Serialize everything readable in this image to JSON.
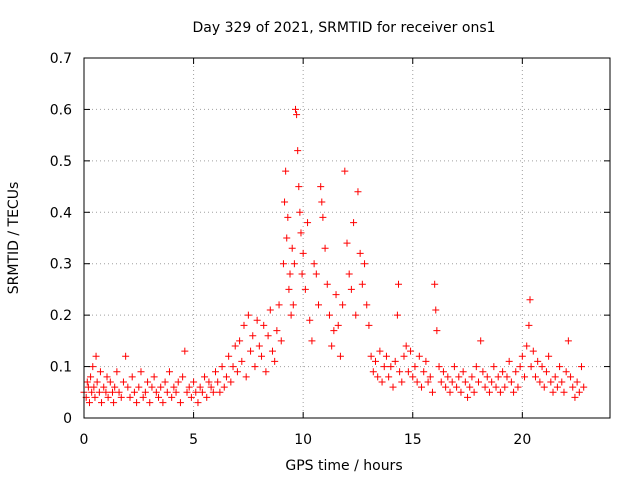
{
  "chart_data": {
    "type": "scatter",
    "title": "Day 329 of 2021, SRMTID for receiver ons1",
    "xlabel": "GPS time / hours",
    "ylabel": "SRMTID / TECUs",
    "xlim": [
      0,
      24
    ],
    "ylim": [
      0,
      0.7
    ],
    "xticks": [
      0,
      5,
      10,
      15,
      20
    ],
    "xtick_labels": [
      "0",
      "5",
      "10",
      "15",
      "20"
    ],
    "yticks": [
      0,
      0.1,
      0.2,
      0.3,
      0.4,
      0.5,
      0.6,
      0.7
    ],
    "ytick_labels": [
      "0",
      "0.1",
      "0.2",
      "0.3",
      "0.4",
      "0.5",
      "0.6",
      "0.7"
    ],
    "grid": true,
    "marker": "+",
    "color": "#ff0000",
    "series": [
      {
        "name": "ons1",
        "points": [
          [
            0.0,
            0.05
          ],
          [
            0.1,
            0.04
          ],
          [
            0.15,
            0.07
          ],
          [
            0.2,
            0.06
          ],
          [
            0.25,
            0.03
          ],
          [
            0.3,
            0.08
          ],
          [
            0.35,
            0.05
          ],
          [
            0.4,
            0.1
          ],
          [
            0.45,
            0.06
          ],
          [
            0.5,
            0.04
          ],
          [
            0.55,
            0.12
          ],
          [
            0.6,
            0.07
          ],
          [
            0.7,
            0.05
          ],
          [
            0.75,
            0.09
          ],
          [
            0.8,
            0.03
          ],
          [
            0.9,
            0.06
          ],
          [
            1.0,
            0.05
          ],
          [
            1.05,
            0.08
          ],
          [
            1.1,
            0.04
          ],
          [
            1.2,
            0.07
          ],
          [
            1.3,
            0.05
          ],
          [
            1.35,
            0.03
          ],
          [
            1.4,
            0.06
          ],
          [
            1.5,
            0.09
          ],
          [
            1.6,
            0.05
          ],
          [
            1.7,
            0.04
          ],
          [
            1.8,
            0.07
          ],
          [
            1.9,
            0.12
          ],
          [
            2.0,
            0.06
          ],
          [
            2.1,
            0.04
          ],
          [
            2.2,
            0.08
          ],
          [
            2.3,
            0.05
          ],
          [
            2.4,
            0.03
          ],
          [
            2.5,
            0.06
          ],
          [
            2.6,
            0.09
          ],
          [
            2.7,
            0.04
          ],
          [
            2.8,
            0.05
          ],
          [
            2.9,
            0.07
          ],
          [
            3.0,
            0.03
          ],
          [
            3.1,
            0.06
          ],
          [
            3.2,
            0.08
          ],
          [
            3.3,
            0.05
          ],
          [
            3.4,
            0.04
          ],
          [
            3.5,
            0.06
          ],
          [
            3.6,
            0.03
          ],
          [
            3.7,
            0.07
          ],
          [
            3.8,
            0.05
          ],
          [
            3.9,
            0.09
          ],
          [
            4.0,
            0.04
          ],
          [
            4.1,
            0.06
          ],
          [
            4.2,
            0.05
          ],
          [
            4.3,
            0.07
          ],
          [
            4.4,
            0.03
          ],
          [
            4.5,
            0.08
          ],
          [
            4.6,
            0.13
          ],
          [
            4.7,
            0.05
          ],
          [
            4.8,
            0.06
          ],
          [
            4.9,
            0.04
          ],
          [
            5.0,
            0.07
          ],
          [
            5.1,
            0.05
          ],
          [
            5.2,
            0.03
          ],
          [
            5.3,
            0.06
          ],
          [
            5.4,
            0.05
          ],
          [
            5.5,
            0.08
          ],
          [
            5.6,
            0.04
          ],
          [
            5.7,
            0.07
          ],
          [
            5.8,
            0.06
          ],
          [
            5.9,
            0.05
          ],
          [
            6.0,
            0.09
          ],
          [
            6.1,
            0.07
          ],
          [
            6.2,
            0.05
          ],
          [
            6.3,
            0.1
          ],
          [
            6.4,
            0.06
          ],
          [
            6.5,
            0.08
          ],
          [
            6.6,
            0.12
          ],
          [
            6.7,
            0.07
          ],
          [
            6.8,
            0.1
          ],
          [
            6.9,
            0.14
          ],
          [
            7.0,
            0.09
          ],
          [
            7.1,
            0.15
          ],
          [
            7.2,
            0.11
          ],
          [
            7.3,
            0.18
          ],
          [
            7.4,
            0.08
          ],
          [
            7.5,
            0.2
          ],
          [
            7.6,
            0.13
          ],
          [
            7.7,
            0.16
          ],
          [
            7.8,
            0.1
          ],
          [
            7.9,
            0.19
          ],
          [
            8.0,
            0.14
          ],
          [
            8.1,
            0.12
          ],
          [
            8.2,
            0.18
          ],
          [
            8.3,
            0.09
          ],
          [
            8.4,
            0.16
          ],
          [
            8.5,
            0.21
          ],
          [
            8.6,
            0.13
          ],
          [
            8.7,
            0.11
          ],
          [
            8.8,
            0.17
          ],
          [
            8.9,
            0.22
          ],
          [
            9.0,
            0.15
          ],
          [
            9.1,
            0.3
          ],
          [
            9.15,
            0.42
          ],
          [
            9.2,
            0.48
          ],
          [
            9.25,
            0.35
          ],
          [
            9.3,
            0.39
          ],
          [
            9.35,
            0.25
          ],
          [
            9.4,
            0.28
          ],
          [
            9.45,
            0.2
          ],
          [
            9.5,
            0.33
          ],
          [
            9.55,
            0.22
          ],
          [
            9.6,
            0.3
          ],
          [
            9.65,
            0.6
          ],
          [
            9.7,
            0.59
          ],
          [
            9.75,
            0.52
          ],
          [
            9.8,
            0.45
          ],
          [
            9.85,
            0.4
          ],
          [
            9.9,
            0.36
          ],
          [
            9.95,
            0.28
          ],
          [
            10.0,
            0.32
          ],
          [
            10.1,
            0.25
          ],
          [
            10.2,
            0.38
          ],
          [
            10.3,
            0.19
          ],
          [
            10.4,
            0.15
          ],
          [
            10.5,
            0.3
          ],
          [
            10.6,
            0.28
          ],
          [
            10.7,
            0.22
          ],
          [
            10.8,
            0.45
          ],
          [
            10.85,
            0.42
          ],
          [
            10.9,
            0.39
          ],
          [
            11.0,
            0.33
          ],
          [
            11.1,
            0.26
          ],
          [
            11.2,
            0.2
          ],
          [
            11.3,
            0.14
          ],
          [
            11.4,
            0.17
          ],
          [
            11.5,
            0.24
          ],
          [
            11.6,
            0.18
          ],
          [
            11.7,
            0.12
          ],
          [
            11.8,
            0.22
          ],
          [
            11.9,
            0.48
          ],
          [
            12.0,
            0.34
          ],
          [
            12.1,
            0.28
          ],
          [
            12.2,
            0.25
          ],
          [
            12.3,
            0.38
          ],
          [
            12.4,
            0.2
          ],
          [
            12.5,
            0.44
          ],
          [
            12.6,
            0.32
          ],
          [
            12.7,
            0.26
          ],
          [
            12.8,
            0.3
          ],
          [
            12.9,
            0.22
          ],
          [
            13.0,
            0.18
          ],
          [
            13.1,
            0.12
          ],
          [
            13.2,
            0.09
          ],
          [
            13.3,
            0.11
          ],
          [
            13.4,
            0.08
          ],
          [
            13.5,
            0.13
          ],
          [
            13.6,
            0.07
          ],
          [
            13.7,
            0.1
          ],
          [
            13.8,
            0.12
          ],
          [
            13.9,
            0.08
          ],
          [
            14.0,
            0.1
          ],
          [
            14.1,
            0.06
          ],
          [
            14.2,
            0.11
          ],
          [
            14.3,
            0.2
          ],
          [
            14.35,
            0.26
          ],
          [
            14.4,
            0.09
          ],
          [
            14.5,
            0.07
          ],
          [
            14.6,
            0.12
          ],
          [
            14.7,
            0.14
          ],
          [
            14.8,
            0.09
          ],
          [
            14.9,
            0.13
          ],
          [
            15.0,
            0.08
          ],
          [
            15.1,
            0.1
          ],
          [
            15.2,
            0.07
          ],
          [
            15.3,
            0.12
          ],
          [
            15.4,
            0.06
          ],
          [
            15.5,
            0.09
          ],
          [
            15.6,
            0.11
          ],
          [
            15.7,
            0.07
          ],
          [
            15.8,
            0.08
          ],
          [
            15.9,
            0.05
          ],
          [
            16.0,
            0.26
          ],
          [
            16.05,
            0.21
          ],
          [
            16.1,
            0.17
          ],
          [
            16.2,
            0.1
          ],
          [
            16.3,
            0.07
          ],
          [
            16.4,
            0.09
          ],
          [
            16.5,
            0.06
          ],
          [
            16.6,
            0.08
          ],
          [
            16.7,
            0.05
          ],
          [
            16.8,
            0.07
          ],
          [
            16.9,
            0.1
          ],
          [
            17.0,
            0.06
          ],
          [
            17.1,
            0.08
          ],
          [
            17.2,
            0.05
          ],
          [
            17.3,
            0.09
          ],
          [
            17.4,
            0.07
          ],
          [
            17.5,
            0.04
          ],
          [
            17.6,
            0.06
          ],
          [
            17.7,
            0.08
          ],
          [
            17.8,
            0.05
          ],
          [
            17.9,
            0.1
          ],
          [
            18.0,
            0.07
          ],
          [
            18.1,
            0.15
          ],
          [
            18.2,
            0.09
          ],
          [
            18.3,
            0.06
          ],
          [
            18.4,
            0.08
          ],
          [
            18.5,
            0.05
          ],
          [
            18.6,
            0.07
          ],
          [
            18.7,
            0.1
          ],
          [
            18.8,
            0.06
          ],
          [
            18.9,
            0.08
          ],
          [
            19.0,
            0.05
          ],
          [
            19.1,
            0.09
          ],
          [
            19.2,
            0.06
          ],
          [
            19.3,
            0.08
          ],
          [
            19.4,
            0.11
          ],
          [
            19.5,
            0.07
          ],
          [
            19.6,
            0.05
          ],
          [
            19.7,
            0.09
          ],
          [
            19.8,
            0.06
          ],
          [
            19.9,
            0.1
          ],
          [
            20.0,
            0.12
          ],
          [
            20.1,
            0.08
          ],
          [
            20.2,
            0.14
          ],
          [
            20.3,
            0.18
          ],
          [
            20.35,
            0.23
          ],
          [
            20.4,
            0.1
          ],
          [
            20.5,
            0.13
          ],
          [
            20.6,
            0.08
          ],
          [
            20.7,
            0.11
          ],
          [
            20.8,
            0.07
          ],
          [
            20.9,
            0.1
          ],
          [
            21.0,
            0.06
          ],
          [
            21.1,
            0.09
          ],
          [
            21.2,
            0.12
          ],
          [
            21.3,
            0.07
          ],
          [
            21.4,
            0.05
          ],
          [
            21.5,
            0.08
          ],
          [
            21.6,
            0.06
          ],
          [
            21.7,
            0.1
          ],
          [
            21.8,
            0.07
          ],
          [
            21.9,
            0.05
          ],
          [
            22.0,
            0.09
          ],
          [
            22.1,
            0.15
          ],
          [
            22.2,
            0.08
          ],
          [
            22.3,
            0.06
          ],
          [
            22.4,
            0.04
          ],
          [
            22.5,
            0.07
          ],
          [
            22.6,
            0.05
          ],
          [
            22.7,
            0.1
          ],
          [
            22.8,
            0.06
          ]
        ]
      }
    ]
  }
}
